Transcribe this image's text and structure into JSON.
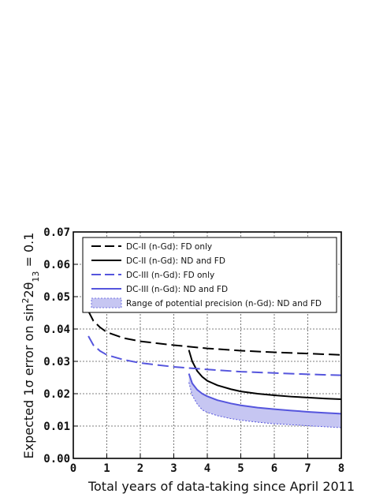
{
  "chart_data": {
    "type": "line",
    "xlabel": "Total years of data-taking since April 2011",
    "ylabel_parts": [
      "Expected 1",
      "σ",
      " error on sin",
      "2",
      "2θ",
      "13",
      " = 0.1"
    ],
    "xlim": [
      0,
      8
    ],
    "ylim": [
      0,
      0.07
    ],
    "xticks": [
      0,
      1,
      2,
      3,
      4,
      5,
      6,
      7,
      8
    ],
    "xtick_labels": [
      "0",
      "1",
      "2",
      "3",
      "4",
      "5",
      "6",
      "7",
      "8"
    ],
    "yticks": [
      0,
      0.01,
      0.02,
      0.03,
      0.04,
      0.05,
      0.06,
      0.07
    ],
    "ytick_labels": [
      "0.00",
      "0.01",
      "0.02",
      "0.03",
      "0.04",
      "0.05",
      "0.06",
      "0.07"
    ],
    "grid": true,
    "legend_position": "top",
    "series": [
      {
        "name": "DC-II (n-Gd): FD only",
        "color": "#000000",
        "dashed": true,
        "x": [
          0.45,
          0.6,
          0.8,
          1.0,
          1.5,
          2.0,
          3.0,
          4.0,
          5.0,
          6.0,
          7.0,
          8.0
        ],
        "y": [
          0.0455,
          0.0425,
          0.0405,
          0.039,
          0.0372,
          0.0362,
          0.035,
          0.034,
          0.0333,
          0.0328,
          0.0324,
          0.032
        ]
      },
      {
        "name": "DC-II (n-Gd): ND and FD",
        "color": "#000000",
        "dashed": false,
        "x": [
          3.45,
          3.55,
          3.7,
          3.85,
          4.0,
          4.3,
          4.7,
          5.0,
          5.5,
          6.0,
          6.5,
          7.0,
          7.5,
          8.0
        ],
        "y": [
          0.0335,
          0.03,
          0.027,
          0.0252,
          0.024,
          0.0226,
          0.0214,
          0.0207,
          0.02,
          0.0195,
          0.0191,
          0.0188,
          0.0185,
          0.0183
        ]
      },
      {
        "name": "DC-III (n-Gd): FD only",
        "color": "#5555dd",
        "dashed": true,
        "x": [
          0.45,
          0.6,
          0.8,
          1.0,
          1.5,
          2.0,
          3.0,
          4.0,
          5.0,
          6.0,
          7.0,
          8.0
        ],
        "y": [
          0.0378,
          0.035,
          0.0332,
          0.032,
          0.0305,
          0.0295,
          0.0283,
          0.0275,
          0.0268,
          0.0264,
          0.026,
          0.0257
        ]
      },
      {
        "name": "DC-III (n-Gd): ND and FD",
        "color": "#5555dd",
        "dashed": false,
        "x": [
          3.45,
          3.55,
          3.7,
          3.85,
          4.0,
          4.3,
          4.7,
          5.0,
          5.5,
          6.0,
          6.5,
          7.0,
          7.5,
          8.0
        ],
        "y": [
          0.0262,
          0.0232,
          0.0212,
          0.02,
          0.0192,
          0.018,
          0.017,
          0.0164,
          0.0157,
          0.0152,
          0.0148,
          0.0144,
          0.0141,
          0.0138
        ]
      }
    ],
    "band": {
      "name": "Range of potential precision (n-Gd): ND and FD",
      "color": "#5555dd",
      "fill": "#c6c6f2",
      "x": [
        3.45,
        3.55,
        3.7,
        3.85,
        4.0,
        4.3,
        4.7,
        5.0,
        5.5,
        6.0,
        6.5,
        7.0,
        7.5,
        8.0
      ],
      "upper": [
        0.0262,
        0.0232,
        0.0212,
        0.02,
        0.0192,
        0.018,
        0.017,
        0.0164,
        0.0157,
        0.0152,
        0.0148,
        0.0144,
        0.0141,
        0.0138
      ],
      "lower": [
        0.0235,
        0.0195,
        0.0168,
        0.015,
        0.0142,
        0.0132,
        0.0123,
        0.0118,
        0.0112,
        0.0107,
        0.0104,
        0.0101,
        0.0098,
        0.0095
      ]
    }
  }
}
